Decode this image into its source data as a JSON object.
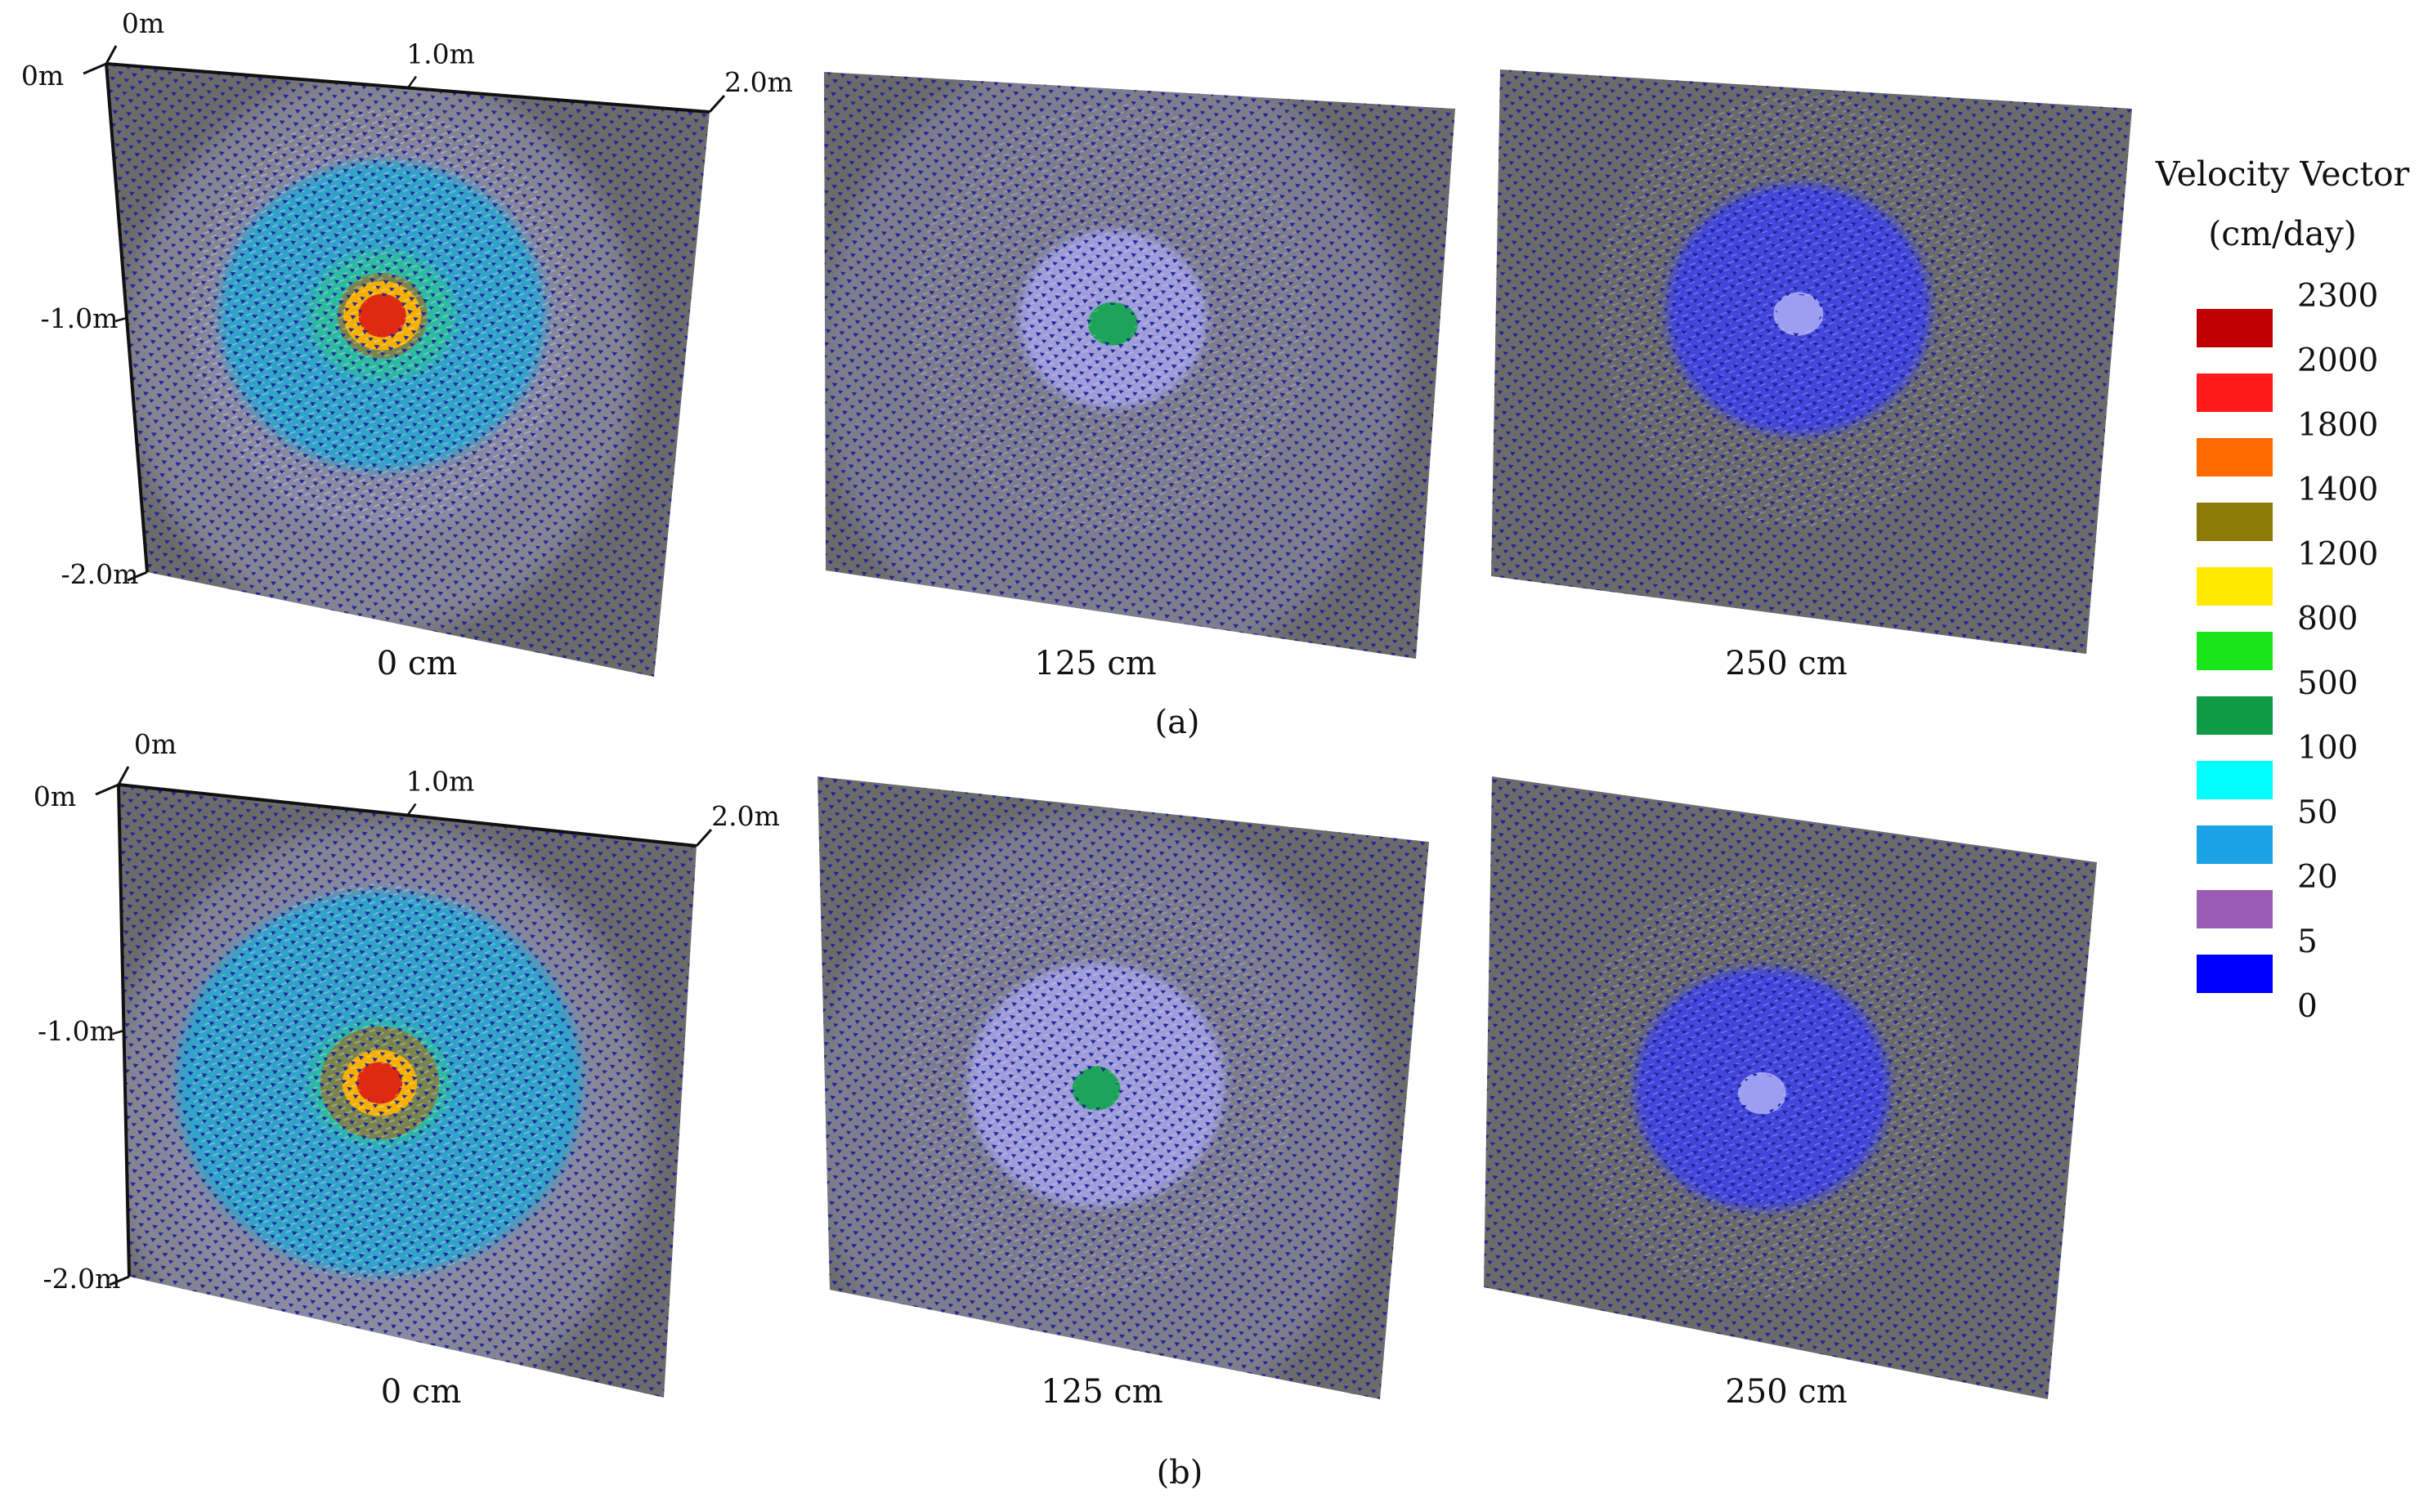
{
  "figure": {
    "rows": [
      {
        "label": "(a)",
        "panels": [
          {
            "caption": "0 cm",
            "show_axes": true,
            "source": {
              "u": 0.46,
              "v": 0.43
            },
            "zones": [
              [
                1.0,
                0.16
              ],
              [
                2.0,
                0.58
              ],
              [
                3.0,
                0.62
              ],
              [
                5.0,
                0.87
              ]
            ],
            "core_color": "#dd2a10",
            "halo_color": "#22a8d0"
          },
          {
            "caption": "125 cm",
            "show_axes": false,
            "source": {
              "u": 0.47,
              "v": 0.44
            },
            "zones": [
              [
                0.9,
                0.06
              ],
              [
                1.2,
                0.32
              ],
              [
                2.2,
                0.95
              ]
            ],
            "core_color": "#1ea45a",
            "halo_color": "#a6a4e8"
          },
          {
            "caption": "250 cm",
            "show_axes": false,
            "source": {
              "u": 0.49,
              "v": 0.42
            },
            "zones": [
              [
                0.9,
                0.05
              ],
              [
                1.6,
                0.45
              ]
            ],
            "core_color": "#9d9df2",
            "halo_color": "#3b3ff0"
          }
        ]
      },
      {
        "label": "(b)",
        "panels": [
          {
            "caption": "0 cm",
            "show_axes": true,
            "source": {
              "u": 0.46,
              "v": 0.52
            },
            "zones": [
              [
                1.0,
                0.22
              ],
              [
                2.3,
                0.75
              ],
              [
                3.0,
                0.78
              ],
              [
                5.0,
                0.96
              ]
            ],
            "core_color": "#dd2a10",
            "halo_color": "#22a8d0"
          },
          {
            "caption": "125 cm",
            "show_axes": false,
            "source": {
              "u": 0.47,
              "v": 0.52
            },
            "zones": [
              [
                0.9,
                0.07
              ],
              [
                1.5,
                0.45
              ],
              [
                2.6,
                0.95
              ]
            ],
            "core_color": "#1ea45a",
            "halo_color": "#a6a4e8"
          },
          {
            "caption": "250 cm",
            "show_axes": false,
            "source": {
              "u": 0.47,
              "v": 0.52
            },
            "zones": [
              [
                0.9,
                0.05
              ],
              [
                1.6,
                0.45
              ]
            ],
            "core_color": "#9d9df2",
            "halo_color": "#3b3ff0"
          }
        ]
      }
    ],
    "axis_labels": {
      "top": [
        "0m",
        "1.0m",
        "2.0m"
      ],
      "left": [
        "0m",
        "-1.0m",
        "-2.0m"
      ]
    }
  },
  "legend": {
    "title_line1": "Velocity Vector",
    "title_line2": "(cm/day)",
    "tick_labels": [
      "2300",
      "2000",
      "1800",
      "1400",
      "1200",
      "800",
      "500",
      "100",
      "50",
      "20",
      "5",
      "0"
    ],
    "swatches": [
      {
        "color": "#c00000"
      },
      {
        "color": "#ff1a1a"
      },
      {
        "color": "#ff6a00"
      },
      {
        "color": "#8b7a05"
      },
      {
        "color": "#ffea00"
      },
      {
        "color": "#19e619"
      },
      {
        "color": "#0f9a45"
      },
      {
        "color": "#00ffff"
      },
      {
        "color": "#1aa3e6"
      },
      {
        "color": "#9b5cb8"
      },
      {
        "color": "#0000ff"
      }
    ]
  },
  "colors": {
    "panel": "#6b6b6b",
    "dots": "#1c2199",
    "background": "#ffffff"
  }
}
